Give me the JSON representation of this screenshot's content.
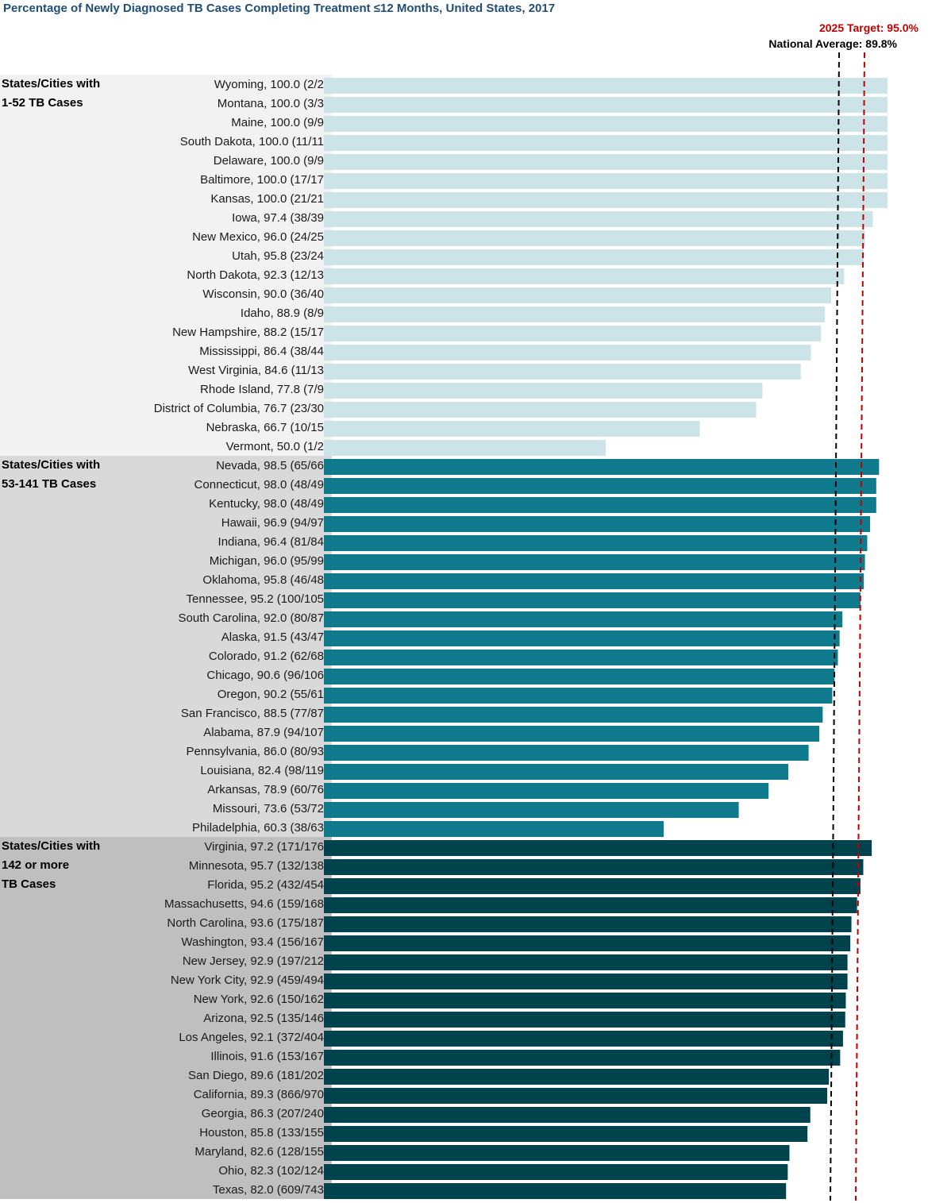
{
  "chart_data": {
    "type": "bar",
    "orientation": "horizontal",
    "title": "Percentage of Newly Diagnosed TB Cases Completing Treatment ≤12 Months, United States, 2017",
    "xlim": [
      50,
      100
    ],
    "reference_lines": [
      {
        "name": "target",
        "label": "2025 Target: 95.0%",
        "value": 95.0,
        "color": "#c00000"
      },
      {
        "name": "national-average",
        "label": "National Average: 89.8%",
        "value": 89.8,
        "color": "#000000"
      }
    ],
    "groups": [
      {
        "label_lines": [
          "States/Cities with",
          "1-52 TB Cases"
        ],
        "bar_color": "#cce3e8",
        "band_color": "#f2f2f2",
        "categories": [
          "Wyoming, 100.0 (2/2",
          "Montana, 100.0 (3/3",
          "Maine, 100.0 (9/9",
          "South Dakota, 100.0 (11/11",
          "Delaware, 100.0 (9/9",
          "Baltimore, 100.0 (17/17",
          "Kansas, 100.0 (21/21",
          "Iowa, 97.4 (38/39",
          "New Mexico, 96.0 (24/25",
          "Utah, 95.8 (23/24",
          "North Dakota, 92.3 (12/13",
          "Wisconsin, 90.0 (36/40",
          "Idaho, 88.9 (8/9",
          "New Hampshire, 88.2 (15/17",
          "Mississippi, 86.4 (38/44",
          "West Virginia, 84.6 (11/13",
          "Rhode Island, 77.8 (7/9",
          "District of Columbia, 76.7 (23/30",
          "Nebraska, 66.7 (10/15",
          "Vermont, 50.0 (1/2"
        ],
        "values": [
          100.0,
          100.0,
          100.0,
          100.0,
          100.0,
          100.0,
          100.0,
          97.4,
          96.0,
          95.8,
          92.3,
          90.0,
          88.9,
          88.2,
          86.4,
          84.6,
          77.8,
          76.7,
          66.7,
          50.0
        ]
      },
      {
        "label_lines": [
          "States/Cities with",
          "53-141 TB Cases"
        ],
        "bar_color": "#0f7a8c",
        "band_color": "#d9d9d9",
        "categories": [
          "Nevada, 98.5 (65/66",
          "Connecticut, 98.0 (48/49",
          "Kentucky, 98.0 (48/49",
          "Hawaii, 96.9 (94/97",
          "Indiana, 96.4 (81/84",
          "Michigan, 96.0 (95/99",
          "Oklahoma, 95.8 (46/48",
          "Tennessee, 95.2 (100/105",
          "South Carolina, 92.0 (80/87",
          "Alaska, 91.5 (43/47",
          "Colorado, 91.2 (62/68",
          "Chicago, 90.6 (96/106",
          "Oregon, 90.2 (55/61",
          "San Francisco, 88.5 (77/87",
          "Alabama, 87.9 (94/107",
          "Pennsylvania, 86.0 (80/93",
          "Louisiana, 82.4 (98/119",
          "Arkansas, 78.9 (60/76",
          "Missouri, 73.6 (53/72",
          "Philadelphia, 60.3 (38/63"
        ],
        "values": [
          98.5,
          98.0,
          98.0,
          96.9,
          96.4,
          96.0,
          95.8,
          95.2,
          92.0,
          91.5,
          91.2,
          90.6,
          90.2,
          88.5,
          87.9,
          86.0,
          82.4,
          78.9,
          73.6,
          60.3
        ]
      },
      {
        "label_lines": [
          "States/Cities with",
          "142 or more",
          "TB Cases"
        ],
        "bar_color": "#00434d",
        "band_color": "#bfbfbf",
        "categories": [
          "Virginia, 97.2 (171/176",
          "Minnesota, 95.7 (132/138",
          "Florida, 95.2 (432/454",
          "Massachusetts, 94.6 (159/168",
          "North Carolina, 93.6 (175/187",
          "Washington, 93.4 (156/167",
          "New Jersey, 92.9 (197/212",
          "New York City, 92.9 (459/494",
          "New York, 92.6 (150/162",
          "Arizona, 92.5 (135/146",
          "Los Angeles, 92.1 (372/404",
          "Illinois, 91.6 (153/167",
          "San Diego, 89.6 (181/202",
          "California, 89.3 (866/970",
          "Georgia, 86.3 (207/240",
          "Houston, 85.8 (133/155",
          "Maryland, 82.6 (128/155",
          "Ohio, 82.3 (102/124",
          "Texas, 82.0 (609/743"
        ],
        "values": [
          97.2,
          95.7,
          95.2,
          94.6,
          93.6,
          93.4,
          92.9,
          92.9,
          92.6,
          92.5,
          92.1,
          91.6,
          89.6,
          89.3,
          86.3,
          85.8,
          82.6,
          82.3,
          82.0
        ]
      }
    ]
  }
}
